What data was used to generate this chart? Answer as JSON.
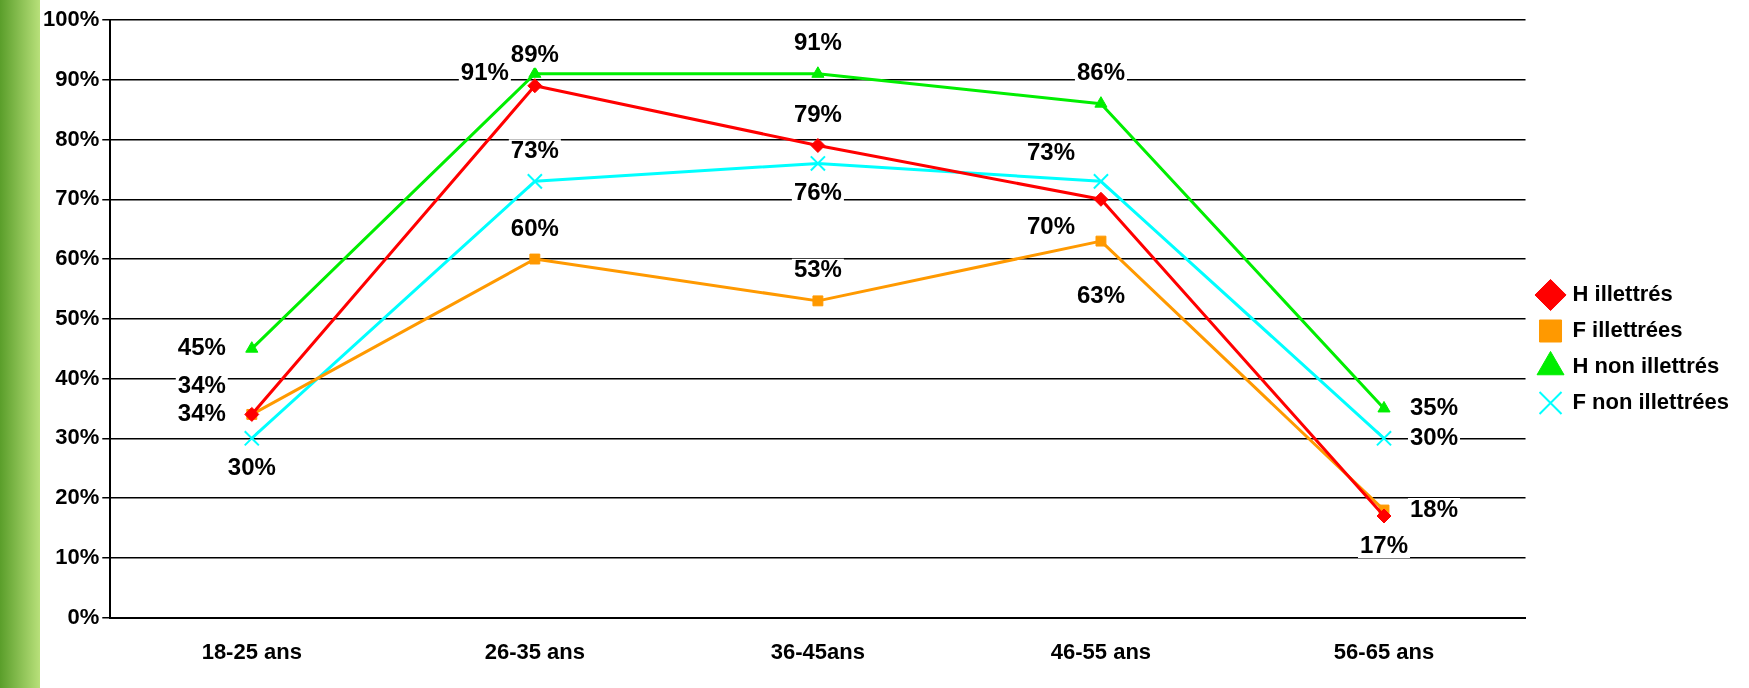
{
  "chart_data": {
    "type": "line",
    "categories": [
      "18-25 ans",
      "26-35 ans",
      "36-45ans",
      "46-55 ans",
      "56-65 ans"
    ],
    "ylim": [
      0,
      100
    ],
    "yticks": [
      {
        "value": 0,
        "label": "0%"
      },
      {
        "value": 10,
        "label": "10%"
      },
      {
        "value": 20,
        "label": "20%"
      },
      {
        "value": 30,
        "label": "30%"
      },
      {
        "value": 40,
        "label": "40%"
      },
      {
        "value": 50,
        "label": "50%"
      },
      {
        "value": 60,
        "label": "60%"
      },
      {
        "value": 70,
        "label": "70%"
      },
      {
        "value": 80,
        "label": "80%"
      },
      {
        "value": 90,
        "label": "90%"
      },
      {
        "value": 100,
        "label": "100%"
      }
    ],
    "grid": "y",
    "legend": "right",
    "series": [
      {
        "name": "H illettrés",
        "color": "#ff0000",
        "marker": "diamond",
        "values": [
          34,
          89,
          79,
          70,
          17
        ],
        "value_labels": [
          "34%",
          "89%",
          "79%",
          "70%",
          "17%"
        ]
      },
      {
        "name": "F illettrées",
        "color": "#ff9900",
        "marker": "square",
        "values": [
          34,
          60,
          53,
          63,
          18
        ],
        "value_labels": [
          "34%",
          "60%",
          "53%",
          "63%",
          "18%"
        ]
      },
      {
        "name": "H non illettrés",
        "color": "#00ee00",
        "marker": "triangle",
        "values": [
          45,
          91,
          91,
          86,
          35
        ],
        "value_labels": [
          "45%",
          "91%",
          "91%",
          "86%",
          "35%"
        ]
      },
      {
        "name": "F non illettrées",
        "color": "#00ffff",
        "marker": "cross",
        "values": [
          30,
          73,
          76,
          73,
          30
        ],
        "value_labels": [
          "30%",
          "73%",
          "76%",
          "73%",
          "30%"
        ]
      }
    ]
  }
}
